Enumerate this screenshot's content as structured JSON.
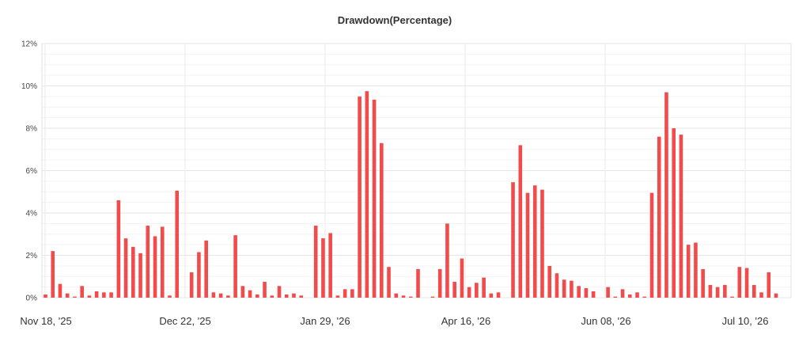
{
  "chart_data": {
    "type": "bar",
    "title": "Drawdown(Percentage)",
    "ylabel": "",
    "xlabel": "",
    "ylim": [
      0,
      12
    ],
    "y_ticks": [
      "0%",
      "2%",
      "4%",
      "6%",
      "8%",
      "10%",
      "12%"
    ],
    "x_ticks": [
      "Nov 18, '25",
      "Dec 22, '25",
      "Jan 29, '26",
      "Apr 16, '26",
      "Jun 08, '26",
      "Jul 10, '26"
    ],
    "grid": true,
    "legend": "none",
    "bar_color": "#f24b4b",
    "series": [
      {
        "values": [
          0.15,
          2.2,
          0.65,
          0.2,
          0.05,
          0.55,
          0.1,
          0.3,
          0.25,
          0.25,
          4.6,
          2.8,
          2.4,
          2.1,
          3.4,
          2.9,
          3.35,
          0.1,
          5.05,
          0.0,
          1.2,
          2.15,
          2.7,
          0.25,
          0.2,
          0.1,
          2.95,
          0.55,
          0.35,
          0.15,
          0.75,
          0.1,
          0.55,
          0.15,
          0.2,
          0.1,
          0.0,
          3.4,
          2.8,
          3.05,
          0.1,
          0.4,
          0.4,
          9.5,
          9.75,
          9.35,
          7.3,
          1.45,
          0.2,
          0.1,
          0.05,
          1.35,
          0.0,
          0.05,
          1.35,
          3.5,
          0.75,
          1.85,
          0.5,
          0.7,
          0.95,
          0.2,
          0.25,
          0.0,
          5.45,
          7.2,
          4.95,
          5.3,
          5.1,
          1.5,
          1.15,
          0.85,
          0.8,
          0.55,
          0.45,
          0.3,
          0.0,
          0.5,
          0.05,
          0.4,
          0.15,
          0.25,
          0.05,
          4.95,
          7.6,
          9.7,
          8.0,
          7.7,
          2.5,
          2.6,
          1.35,
          0.6,
          0.5,
          0.6,
          0.05,
          1.45,
          1.4,
          0.6,
          0.25,
          1.2,
          0.2
        ]
      }
    ]
  }
}
